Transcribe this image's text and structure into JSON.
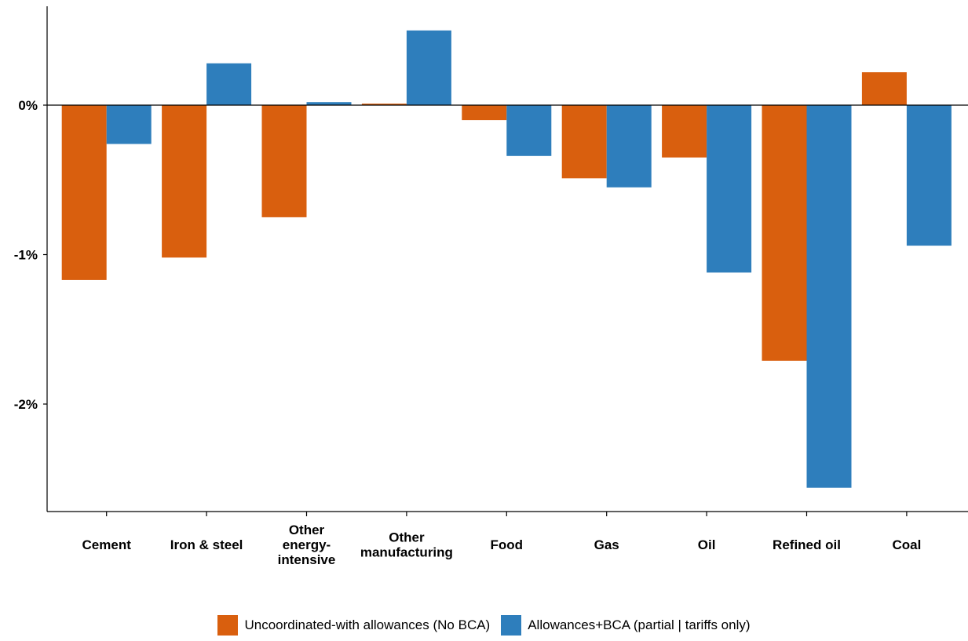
{
  "chart_data": {
    "type": "bar",
    "title": "",
    "xlabel": "",
    "ylabel": "",
    "categories": [
      [
        "Cement"
      ],
      [
        "Iron & steel"
      ],
      [
        "Other",
        "energy-",
        "intensive"
      ],
      [
        "Other",
        "manufacturing"
      ],
      [
        "Food"
      ],
      [
        "Gas"
      ],
      [
        "Oil"
      ],
      [
        "Refined oil"
      ],
      [
        "Coal"
      ]
    ],
    "series": [
      {
        "name": "Uncoordinated-with allowances (No BCA)",
        "color": "#D95F0E",
        "values": [
          -1.17,
          -1.02,
          -0.75,
          0.01,
          -0.1,
          -0.49,
          -0.35,
          -1.71,
          0.22
        ]
      },
      {
        "name": "Allowances+BCA (partial | tariffs only)",
        "color": "#2E7EBC",
        "values": [
          -0.26,
          0.28,
          0.02,
          0.5,
          -0.34,
          -0.55,
          -1.12,
          -2.56,
          -0.94
        ]
      }
    ],
    "ylim": [
      -2.6,
      0.66
    ],
    "yticks": [
      0,
      -1,
      -2
    ],
    "ytick_labels": [
      "0%",
      "-1%",
      "-2%"
    ],
    "grid": false,
    "zero_line": true,
    "legend_position": "bottom"
  }
}
